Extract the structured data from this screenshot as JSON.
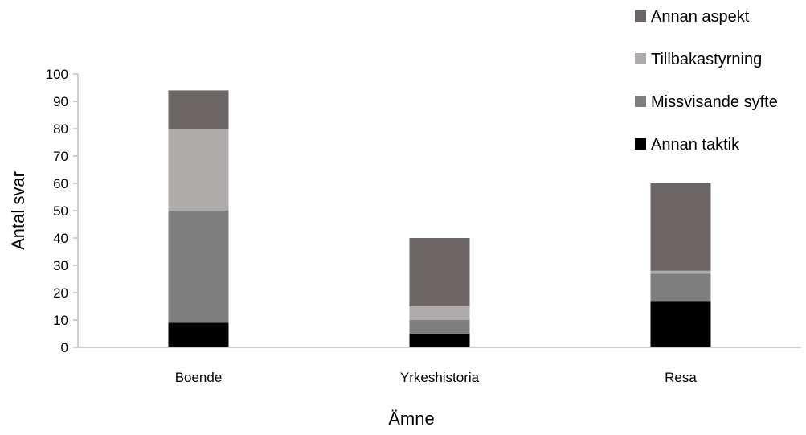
{
  "chart_data": {
    "type": "bar",
    "stacked": true,
    "categories": [
      "Boende",
      "Yrkeshistoria",
      "Resa"
    ],
    "series": [
      {
        "name": "Annan taktik",
        "values": [
          9,
          5,
          17
        ],
        "color": "#000000"
      },
      {
        "name": "Missvisande syfte",
        "values": [
          41,
          5,
          10
        ],
        "color": "#7f7f7f"
      },
      {
        "name": "Tillbakastyrning",
        "values": [
          30,
          5,
          1
        ],
        "color": "#b0abab"
      },
      {
        "name": "Annan aspekt",
        "values": [
          14,
          25,
          32
        ],
        "color": "#6d6666"
      }
    ],
    "legend_order": [
      "Annan aspekt",
      "Tillbakastyrning",
      "Missvisande syfte",
      "Annan taktik"
    ],
    "xlabel": "Ämne",
    "ylabel": "Antal svar",
    "ylim": [
      0,
      100
    ],
    "yticks": [
      0,
      10,
      20,
      30,
      40,
      50,
      60,
      70,
      80,
      90,
      100
    ],
    "grid": false,
    "legend_position": "top-right"
  }
}
